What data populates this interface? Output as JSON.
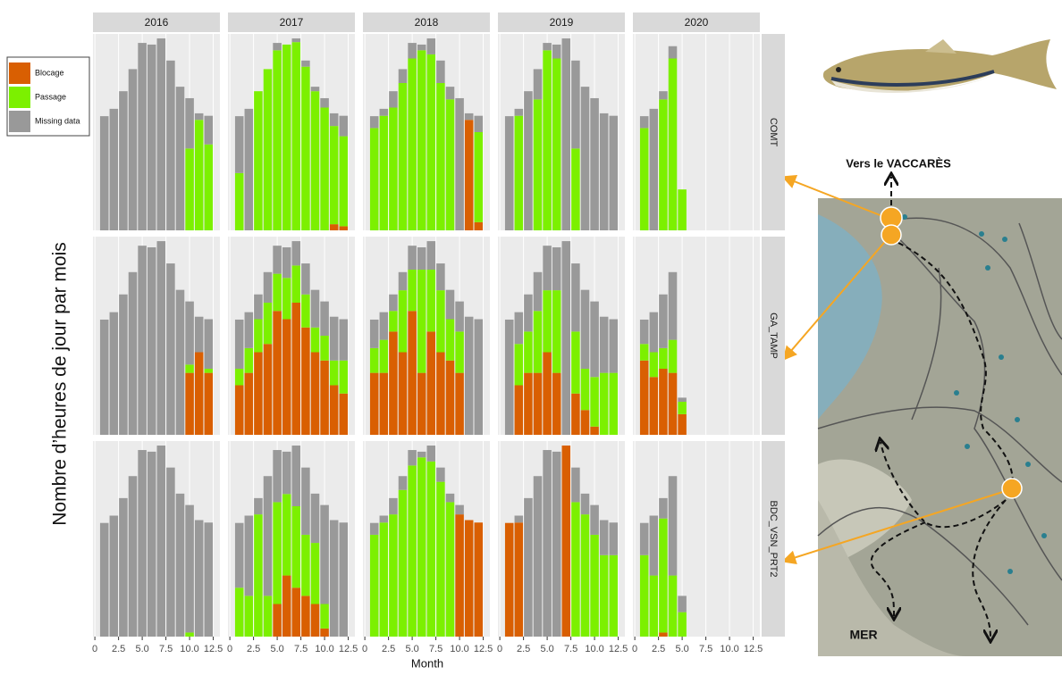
{
  "chart_data": {
    "type": "bar",
    "stacked": true,
    "x_label": "Month",
    "y_label": "Nombre d’heures de jour par mois",
    "series": [
      {
        "name": "Blocage",
        "color": "#d95f02"
      },
      {
        "name": "Passage",
        "color": "#7cf000"
      },
      {
        "name": "Missing data",
        "color": "#999999"
      }
    ],
    "x": [
      1,
      2,
      3,
      4,
      5,
      6,
      7,
      8,
      9,
      10,
      11,
      12
    ],
    "columns": [
      "2016",
      "2017",
      "2018",
      "2019",
      "2020"
    ],
    "rows": [
      {
        "label": "COMT",
        "panels": [
          {
            "values": [
              [
                0,
                0,
                0,
                0,
                0,
                0,
                0,
                0,
                0,
                0,
                0,
                0
              ],
              [
                0,
                0,
                0,
                0,
                0,
                0,
                0,
                0,
                0,
                200,
                270,
                210
              ],
              [
                279,
                297,
                340,
                394,
                458,
                454,
                469,
                415,
                351,
                123,
                16,
                70
              ]
            ]
          },
          {
            "values": [
              [
                0,
                0,
                0,
                0,
                0,
                0,
                0,
                0,
                0,
                0,
                15,
                10
              ],
              [
                140,
                0,
                340,
                394,
                440,
                454,
                460,
                400,
                340,
                300,
                240,
                220
              ],
              [
                139,
                297,
                0,
                0,
                18,
                0,
                9,
                15,
                11,
                23,
                31,
                50
              ]
            ]
          },
          {
            "values": [
              [
                0,
                0,
                0,
                0,
                0,
                0,
                0,
                0,
                0,
                0,
                270,
                20
              ],
              [
                250,
                280,
                300,
                360,
                420,
                440,
                430,
                360,
                320,
                0,
                0,
                220
              ],
              [
                29,
                17,
                40,
                34,
                38,
                14,
                39,
                55,
                31,
                323,
                16,
                40
              ]
            ]
          },
          {
            "values": [
              [
                0,
                0,
                0,
                0,
                0,
                0,
                0,
                0,
                0,
                0,
                0,
                0
              ],
              [
                0,
                280,
                0,
                320,
                440,
                420,
                0,
                200,
                0,
                0,
                0,
                0
              ],
              [
                279,
                17,
                340,
                74,
                18,
                34,
                469,
                215,
                351,
                323,
                286,
                280
              ]
            ]
          },
          {
            "values": [
              [
                0,
                0,
                0,
                0,
                0,
                null,
                null,
                null,
                null,
                null,
                null,
                null
              ],
              [
                250,
                0,
                320,
                420,
                100,
                null,
                null,
                null,
                null,
                null,
                null,
                null
              ],
              [
                29,
                297,
                20,
                30,
                0,
                null,
                null,
                null,
                null,
                null,
                null,
                null
              ]
            ]
          }
        ]
      },
      {
        "label": "GA_TAMP",
        "panels": [
          {
            "values": [
              [
                0,
                0,
                0,
                0,
                0,
                0,
                0,
                0,
                0,
                150,
                200,
                150
              ],
              [
                0,
                0,
                0,
                0,
                0,
                0,
                0,
                0,
                0,
                20,
                0,
                10
              ],
              [
                279,
                297,
                340,
                394,
                458,
                454,
                469,
                415,
                351,
                153,
                86,
                120
              ]
            ]
          },
          {
            "values": [
              [
                120,
                150,
                200,
                220,
                300,
                280,
                320,
                260,
                200,
                180,
                120,
                100
              ],
              [
                40,
                60,
                80,
                100,
                90,
                100,
                90,
                80,
                60,
                60,
                60,
                80
              ],
              [
                119,
                87,
                60,
                74,
                68,
                74,
                59,
                75,
                91,
                83,
                106,
                100
              ]
            ]
          },
          {
            "values": [
              [
                150,
                150,
                250,
                200,
                300,
                150,
                250,
                200,
                180,
                150,
                0,
                0
              ],
              [
                60,
                80,
                50,
                150,
                100,
                250,
                150,
                150,
                100,
                100,
                0,
                0
              ],
              [
                69,
                67,
                40,
                44,
                58,
                54,
                69,
                65,
                71,
                73,
                286,
                280
              ]
            ]
          },
          {
            "values": [
              [
                0,
                120,
                150,
                150,
                200,
                150,
                0,
                100,
                60,
                20,
                0,
                0
              ],
              [
                0,
                100,
                100,
                150,
                150,
                200,
                0,
                150,
                100,
                120,
                150,
                150
              ],
              [
                279,
                77,
                90,
                94,
                108,
                104,
                469,
                165,
                191,
                183,
                136,
                130
              ]
            ]
          },
          {
            "values": [
              [
                180,
                140,
                160,
                150,
                50,
                null,
                null,
                null,
                null,
                null,
                null,
                null
              ],
              [
                40,
                60,
                50,
                80,
                30,
                null,
                null,
                null,
                null,
                null,
                null,
                null
              ],
              [
                59,
                97,
                130,
                164,
                10,
                null,
                null,
                null,
                null,
                null,
                null,
                null
              ]
            ]
          }
        ]
      },
      {
        "label": "BDC_VSN_PRT2",
        "panels": [
          {
            "values": [
              [
                0,
                0,
                0,
                0,
                0,
                0,
                0,
                0,
                0,
                0,
                0,
                0
              ],
              [
                0,
                0,
                0,
                0,
                0,
                0,
                0,
                0,
                0,
                10,
                0,
                0
              ],
              [
                279,
                297,
                340,
                394,
                458,
                454,
                469,
                415,
                351,
                313,
                286,
                280
              ]
            ]
          },
          {
            "values": [
              [
                0,
                0,
                0,
                0,
                80,
                150,
                120,
                100,
                80,
                20,
                0,
                0
              ],
              [
                120,
                100,
                300,
                100,
                250,
                200,
                200,
                150,
                150,
                60,
                0,
                0
              ],
              [
                159,
                197,
                40,
                294,
                128,
                104,
                149,
                165,
                121,
                243,
                286,
                280
              ]
            ]
          },
          {
            "values": [
              [
                0,
                0,
                0,
                0,
                0,
                0,
                0,
                0,
                0,
                300,
                286,
                280
              ],
              [
                250,
                280,
                300,
                360,
                420,
                440,
                430,
                380,
                330,
                0,
                0,
                0
              ],
              [
                29,
                17,
                40,
                34,
                38,
                14,
                39,
                35,
                21,
                23,
                0,
                0
              ]
            ]
          },
          {
            "values": [
              [
                279,
                280,
                0,
                0,
                0,
                0,
                469,
                0,
                0,
                0,
                0,
                0
              ],
              [
                0,
                0,
                0,
                0,
                0,
                0,
                0,
                330,
                300,
                250,
                200,
                200
              ],
              [
                0,
                17,
                340,
                394,
                458,
                454,
                0,
                85,
                51,
                73,
                86,
                80
              ]
            ]
          },
          {
            "values": [
              [
                0,
                0,
                10,
                0,
                0,
                null,
                null,
                null,
                null,
                null,
                null,
                null
              ],
              [
                200,
                150,
                280,
                150,
                60,
                null,
                null,
                null,
                null,
                null,
                null,
                null
              ],
              [
                79,
                147,
                50,
                244,
                40,
                null,
                null,
                null,
                null,
                null,
                null,
                null
              ]
            ]
          }
        ]
      }
    ],
    "xlim": [
      -0.2,
      13.2
    ],
    "xticks": [
      0,
      2.5,
      {
        "value": 5,
        "label": "5.0"
      },
      7.5,
      {
        "value": 10,
        "label": "10.0"
      },
      12.5
    ],
    "ylim": [
      0,
      480
    ],
    "grid": true
  },
  "map": {
    "labels": [
      "Vers le VACCARÈS",
      "MER"
    ]
  }
}
